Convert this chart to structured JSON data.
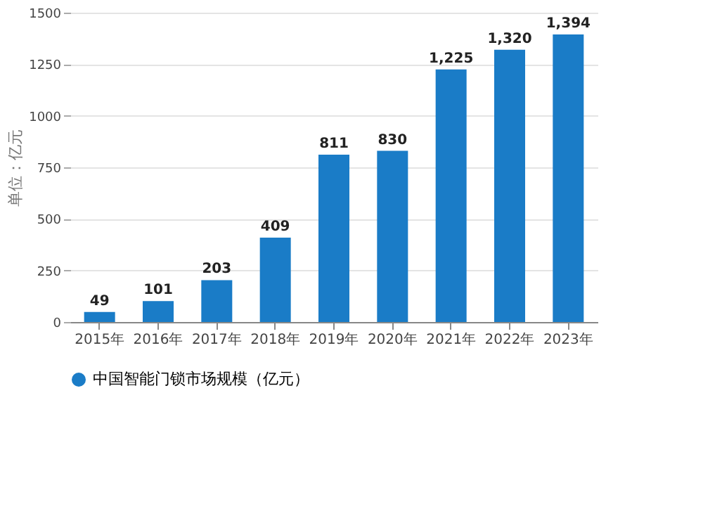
{
  "chart_data": {
    "type": "bar",
    "ylabel": "单位：亿元",
    "categories": [
      "2015年",
      "2016年",
      "2017年",
      "2018年",
      "2019年",
      "2020年",
      "2021年",
      "2022年",
      "2023年"
    ],
    "series": [
      {
        "name": "中国智能门锁市场规模（亿元）",
        "color": "#1a7cc7",
        "values": [
          49,
          101,
          203,
          409,
          811,
          830,
          1225,
          1320,
          1394
        ],
        "value_labels": [
          "49",
          "101",
          "203",
          "409",
          "811",
          "830",
          "1,225",
          "1,320",
          "1,394"
        ]
      }
    ],
    "ylim": [
      0,
      1500
    ],
    "yticks": [
      0,
      250,
      500,
      750,
      1000,
      1250,
      1500
    ],
    "grid": "y",
    "legend": "bottom",
    "data_labels": true
  }
}
